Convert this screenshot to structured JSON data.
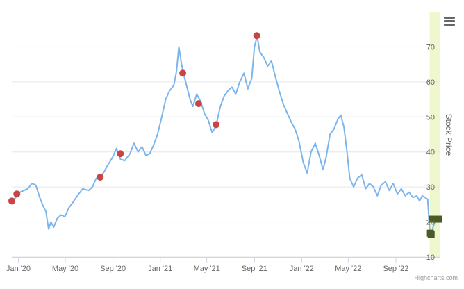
{
  "chart_data": {
    "type": "line",
    "title": "",
    "xlabel": "",
    "ylabel": "Stock Price",
    "ylim": [
      10,
      80
    ],
    "y_ticks": [
      "10",
      "20",
      "30",
      "40",
      "50",
      "60",
      "70"
    ],
    "x_range": [
      "2019-12-15",
      "2022-12-23"
    ],
    "x_ticks": [
      {
        "date": "2020-01-01",
        "label": "Jan '20"
      },
      {
        "date": "2020-05-01",
        "label": "May '20"
      },
      {
        "date": "2020-09-01",
        "label": "Sep '20"
      },
      {
        "date": "2021-01-01",
        "label": "Jan '21"
      },
      {
        "date": "2021-05-01",
        "label": "May '21"
      },
      {
        "date": "2021-09-01",
        "label": "Sep '21"
      },
      {
        "date": "2022-01-01",
        "label": "Jan '22"
      },
      {
        "date": "2022-05-01",
        "label": "May '22"
      },
      {
        "date": "2022-09-01",
        "label": "Sep '22"
      }
    ],
    "plot_band": {
      "from": "2022-11-27",
      "to": "2022-12-23",
      "color": "#eef8cc"
    },
    "grid": true,
    "series": [
      {
        "color": "#7cb5ec",
        "points": [
          [
            "2019-12-15",
            26.0
          ],
          [
            "2019-12-25",
            27.0
          ],
          [
            "2020-01-05",
            28.5
          ],
          [
            "2020-01-15",
            29.0
          ],
          [
            "2020-01-25",
            29.5
          ],
          [
            "2020-02-05",
            31.0
          ],
          [
            "2020-02-15",
            30.5
          ],
          [
            "2020-02-25",
            27.0
          ],
          [
            "2020-03-05",
            24.5
          ],
          [
            "2020-03-12",
            23.0
          ],
          [
            "2020-03-19",
            18.0
          ],
          [
            "2020-03-25",
            20.0
          ],
          [
            "2020-04-01",
            18.5
          ],
          [
            "2020-04-10",
            21.0
          ],
          [
            "2020-04-20",
            22.0
          ],
          [
            "2020-04-30",
            21.5
          ],
          [
            "2020-05-10",
            24.0
          ],
          [
            "2020-05-20",
            25.5
          ],
          [
            "2020-06-01",
            27.5
          ],
          [
            "2020-06-15",
            29.5
          ],
          [
            "2020-06-30",
            29.0
          ],
          [
            "2020-07-10",
            30.0
          ],
          [
            "2020-07-20",
            32.5
          ],
          [
            "2020-08-01",
            33.0
          ],
          [
            "2020-08-10",
            34.5
          ],
          [
            "2020-08-20",
            36.5
          ],
          [
            "2020-08-31",
            38.5
          ],
          [
            "2020-09-10",
            41.0
          ],
          [
            "2020-09-20",
            38.0
          ],
          [
            "2020-10-01",
            37.5
          ],
          [
            "2020-10-15",
            39.5
          ],
          [
            "2020-10-25",
            42.5
          ],
          [
            "2020-11-05",
            40.0
          ],
          [
            "2020-11-15",
            41.5
          ],
          [
            "2020-11-25",
            39.0
          ],
          [
            "2020-12-05",
            39.5
          ],
          [
            "2020-12-15",
            42.0
          ],
          [
            "2020-12-25",
            45.0
          ],
          [
            "2021-01-05",
            50.0
          ],
          [
            "2021-01-15",
            55.0
          ],
          [
            "2021-01-25",
            57.5
          ],
          [
            "2021-02-05",
            59.0
          ],
          [
            "2021-02-12",
            63.0
          ],
          [
            "2021-02-18",
            70.0
          ],
          [
            "2021-02-25",
            65.0
          ],
          [
            "2021-03-05",
            61.0
          ],
          [
            "2021-03-12",
            58.0
          ],
          [
            "2021-03-19",
            55.0
          ],
          [
            "2021-03-26",
            53.0
          ],
          [
            "2021-04-05",
            56.5
          ],
          [
            "2021-04-15",
            54.5
          ],
          [
            "2021-04-25",
            51.0
          ],
          [
            "2021-05-05",
            49.0
          ],
          [
            "2021-05-15",
            45.5
          ],
          [
            "2021-05-25",
            47.5
          ],
          [
            "2021-06-05",
            53.0
          ],
          [
            "2021-06-15",
            56.0
          ],
          [
            "2021-06-25",
            57.5
          ],
          [
            "2021-07-05",
            58.5
          ],
          [
            "2021-07-15",
            56.5
          ],
          [
            "2021-07-25",
            60.0
          ],
          [
            "2021-08-05",
            62.5
          ],
          [
            "2021-08-15",
            58.0
          ],
          [
            "2021-08-25",
            61.0
          ],
          [
            "2021-09-01",
            70.0
          ],
          [
            "2021-09-08",
            73.0
          ],
          [
            "2021-09-15",
            68.5
          ],
          [
            "2021-09-25",
            67.0
          ],
          [
            "2021-10-05",
            64.5
          ],
          [
            "2021-10-15",
            66.0
          ],
          [
            "2021-10-25",
            61.5
          ],
          [
            "2021-11-05",
            57.0
          ],
          [
            "2021-11-15",
            53.5
          ],
          [
            "2021-11-25",
            51.0
          ],
          [
            "2021-12-05",
            48.5
          ],
          [
            "2021-12-15",
            46.5
          ],
          [
            "2021-12-25",
            43.0
          ],
          [
            "2022-01-05",
            37.0
          ],
          [
            "2022-01-15",
            34.0
          ],
          [
            "2022-01-25",
            40.0
          ],
          [
            "2022-02-05",
            42.5
          ],
          [
            "2022-02-15",
            39.0
          ],
          [
            "2022-02-25",
            35.0
          ],
          [
            "2022-03-05",
            38.5
          ],
          [
            "2022-03-15",
            45.0
          ],
          [
            "2022-03-25",
            46.5
          ],
          [
            "2022-04-05",
            49.5
          ],
          [
            "2022-04-12",
            50.5
          ],
          [
            "2022-04-20",
            47.0
          ],
          [
            "2022-04-28",
            40.0
          ],
          [
            "2022-05-05",
            32.5
          ],
          [
            "2022-05-15",
            30.0
          ],
          [
            "2022-05-25",
            32.5
          ],
          [
            "2022-06-05",
            33.5
          ],
          [
            "2022-06-15",
            29.5
          ],
          [
            "2022-06-25",
            31.0
          ],
          [
            "2022-07-05",
            30.0
          ],
          [
            "2022-07-15",
            27.5
          ],
          [
            "2022-07-25",
            30.5
          ],
          [
            "2022-08-05",
            31.5
          ],
          [
            "2022-08-15",
            29.0
          ],
          [
            "2022-08-25",
            31.0
          ],
          [
            "2022-09-05",
            28.0
          ],
          [
            "2022-09-15",
            29.5
          ],
          [
            "2022-09-25",
            27.5
          ],
          [
            "2022-10-05",
            28.5
          ],
          [
            "2022-10-15",
            27.0
          ],
          [
            "2022-10-25",
            27.5
          ],
          [
            "2022-11-01",
            26.0
          ],
          [
            "2022-11-08",
            27.5
          ],
          [
            "2022-11-15",
            27.0
          ],
          [
            "2022-11-22",
            26.5
          ],
          [
            "2022-11-27",
            18.0
          ],
          [
            "2022-12-01",
            16.5
          ],
          [
            "2022-12-06",
            18.5
          ],
          [
            "2022-12-12",
            20.5
          ],
          [
            "2022-12-18",
            21.0
          ]
        ]
      }
    ],
    "markers": [
      {
        "date": "2019-12-15",
        "y": 26.0,
        "color": "#c94545",
        "shape": "circle"
      },
      {
        "date": "2019-12-28",
        "y": 28.0,
        "color": "#c94545",
        "shape": "circle"
      },
      {
        "date": "2020-07-30",
        "y": 32.8,
        "color": "#c94545",
        "shape": "circle"
      },
      {
        "date": "2020-09-20",
        "y": 39.5,
        "color": "#c94545",
        "shape": "circle"
      },
      {
        "date": "2021-02-28",
        "y": 62.5,
        "color": "#c94545",
        "shape": "circle"
      },
      {
        "date": "2021-04-10",
        "y": 53.8,
        "color": "#c94545",
        "shape": "circle"
      },
      {
        "date": "2021-05-25",
        "y": 47.8,
        "color": "#c94545",
        "shape": "circle"
      },
      {
        "date": "2021-09-07",
        "y": 73.2,
        "color": "#c94545",
        "shape": "circle"
      },
      {
        "date": "2022-11-29",
        "y": 16.8,
        "color": "#4b5a26",
        "shape": "square"
      },
      {
        "date": "2022-12-01",
        "y": 16.4,
        "color": "#4b5a26",
        "shape": "square"
      },
      {
        "date": "2022-12-03",
        "y": 20.8,
        "color": "#4b5a26",
        "shape": "square"
      },
      {
        "date": "2022-12-20",
        "y": 20.8,
        "color": "#4b5a26",
        "shape": "square"
      }
    ]
  },
  "menu_icon": "hamburger-menu-icon",
  "credits": "Highcharts.com"
}
